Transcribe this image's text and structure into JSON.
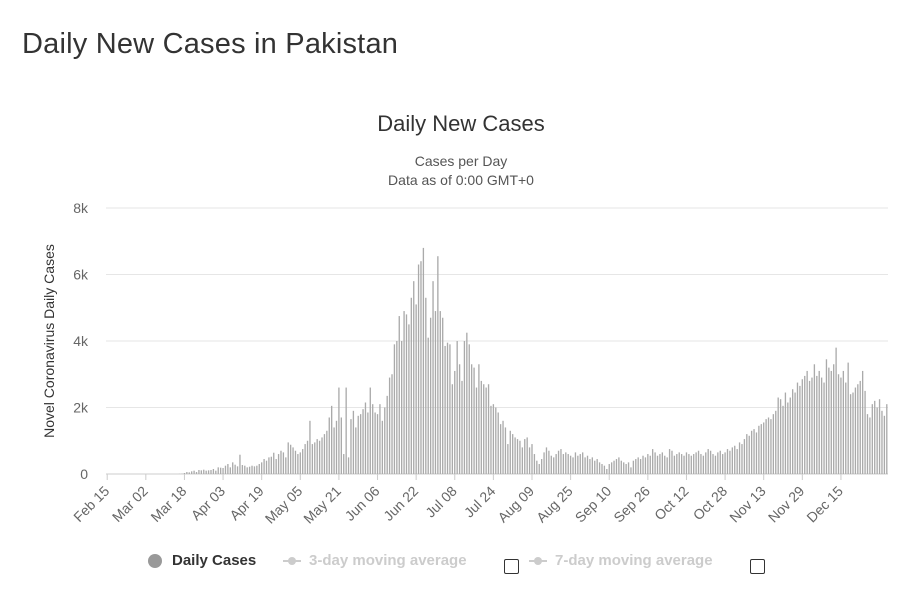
{
  "page": {
    "title": "Daily New Cases in Pakistan"
  },
  "colors": {
    "bar": "#aaaaaa",
    "grid": "#e6e6e6",
    "text": "#333333",
    "axis_text": "#666666",
    "legend_disabled": "#cccccc",
    "legend_dot": "#999999"
  },
  "chart_data": {
    "type": "bar",
    "title": "Daily New Cases",
    "subtitle_lines": [
      "Cases per Day",
      "Data as of 0:00 GMT+0"
    ],
    "ylabel": "Novel Coronavirus Daily Cases",
    "xlabel": "",
    "ylim": [
      0,
      8000
    ],
    "y_ticks": [
      0,
      2000,
      4000,
      6000,
      8000
    ],
    "y_tick_labels": [
      "0",
      "2k",
      "4k",
      "6k",
      "8k"
    ],
    "x_start": "Feb 15",
    "x_tick_labels": [
      "Feb 15",
      "Mar 02",
      "Mar 18",
      "Apr 03",
      "Apr 19",
      "May 05",
      "May 21",
      "Jun 06",
      "Jun 22",
      "Jul 08",
      "Jul 24",
      "Aug 09",
      "Aug 25",
      "Sep 10",
      "Sep 26",
      "Oct 12",
      "Oct 28",
      "Nov 13",
      "Nov 29",
      "Dec 15"
    ],
    "x_tick_interval_days": 16,
    "series": [
      {
        "name": "Daily Cases",
        "values": [
          0,
          0,
          0,
          0,
          0,
          0,
          0,
          0,
          0,
          0,
          0,
          0,
          0,
          0,
          0,
          0,
          0,
          0,
          0,
          0,
          0,
          0,
          0,
          0,
          0,
          0,
          0,
          0,
          0,
          0,
          5,
          10,
          30,
          60,
          50,
          80,
          100,
          60,
          120,
          110,
          130,
          100,
          110,
          120,
          150,
          100,
          200,
          190,
          180,
          250,
          300,
          200,
          350,
          280,
          230,
          580,
          270,
          250,
          200,
          220,
          250,
          230,
          250,
          300,
          350,
          450,
          400,
          500,
          520,
          640,
          450,
          600,
          700,
          650,
          500,
          950,
          880,
          800,
          700,
          600,
          650,
          750,
          900,
          1000,
          1600,
          900,
          950,
          1050,
          1000,
          1100,
          1200,
          1300,
          1700,
          2050,
          1400,
          1600,
          2600,
          1700,
          600,
          2600,
          500,
          1650,
          1900,
          1400,
          1750,
          1800,
          1950,
          2150,
          1850,
          2600,
          2100,
          1850,
          1800,
          2100,
          1600,
          2000,
          2350,
          2900,
          3000,
          3900,
          4000,
          4750,
          4000,
          4900,
          4800,
          4500,
          5300,
          5800,
          5100,
          6300,
          6400,
          6800,
          5300,
          4100,
          4700,
          5800,
          4900,
          6550,
          4900,
          4700,
          3850,
          3950,
          3900,
          2700,
          3100,
          4000,
          3300,
          2800,
          4000,
          4250,
          3900,
          3300,
          3200,
          2600,
          3300,
          2800,
          2700,
          2600,
          2700,
          2050,
          2100,
          2000,
          1850,
          1500,
          1600,
          1400,
          900,
          1300,
          1200,
          1100,
          1050,
          1000,
          800,
          1050,
          1100,
          800,
          900,
          600,
          400,
          300,
          450,
          650,
          800,
          700,
          550,
          500,
          600,
          700,
          750,
          600,
          650,
          600,
          550,
          500,
          650,
          550,
          600,
          650,
          500,
          550,
          450,
          500,
          400,
          450,
          350,
          300,
          250,
          150,
          300,
          350,
          400,
          450,
          500,
          400,
          350,
          300,
          350,
          200,
          400,
          450,
          500,
          450,
          550,
          500,
          600,
          550,
          750,
          650,
          550,
          600,
          650,
          550,
          500,
          750,
          700,
          550,
          600,
          650,
          600,
          550,
          650,
          600,
          550,
          600,
          650,
          700,
          600,
          550,
          650,
          750,
          700,
          600,
          550,
          650,
          700,
          600,
          650,
          750,
          700,
          800,
          850,
          750,
          950,
          900,
          1050,
          1200,
          1150,
          1300,
          1350,
          1250,
          1450,
          1500,
          1550,
          1650,
          1700,
          1650,
          1800,
          1900,
          2300,
          2250,
          2050,
          2450,
          2150,
          2300,
          2550,
          2450,
          2750,
          2650,
          2850,
          2950,
          3100,
          2800,
          2900,
          3300,
          2950,
          3100,
          2900,
          2750,
          3450,
          3200,
          3100,
          3300,
          3800,
          3000,
          2900,
          3100,
          2750,
          3350,
          2400,
          2450,
          2600,
          2700,
          2800,
          3100,
          2500,
          1800,
          1700,
          2100,
          2200,
          2000,
          2250,
          1900,
          1750,
          2100
        ]
      }
    ],
    "legend": [
      {
        "name": "Daily Cases",
        "enabled": true
      },
      {
        "name": "3-day moving average",
        "enabled": false
      },
      {
        "name": "7-day moving average",
        "enabled": false
      }
    ]
  }
}
